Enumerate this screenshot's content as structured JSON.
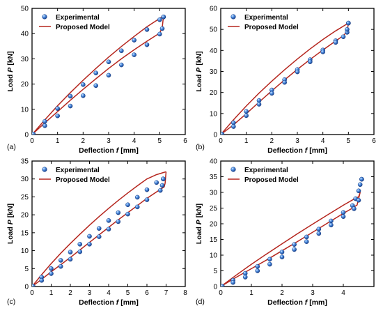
{
  "chart_data": [
    {
      "panel_label": "(a)",
      "type": "scatter",
      "xlabel_parts": [
        "Deflection ",
        "f",
        " [mm]"
      ],
      "ylabel_parts": [
        "Load ",
        "P",
        " [kN]"
      ],
      "xlim": [
        0,
        6
      ],
      "ylim": [
        0,
        50
      ],
      "xticks": [
        0,
        1,
        2,
        3,
        4,
        5,
        6
      ],
      "yticks": [
        0,
        10,
        20,
        30,
        40,
        50
      ],
      "legend": [
        "Experimental",
        "Proposed Model"
      ],
      "legend_position": "top-left",
      "series": [
        {
          "name": "Experimental",
          "kind": "markers",
          "loading": [
            [
              0,
              0
            ],
            [
              0.5,
              5.2
            ],
            [
              1.0,
              10.3
            ],
            [
              1.5,
              15.2
            ],
            [
              2.0,
              19.8
            ],
            [
              2.5,
              24.4
            ],
            [
              3.0,
              28.8
            ],
            [
              3.5,
              33.2
            ],
            [
              4.0,
              37.4
            ],
            [
              4.5,
              41.6
            ],
            [
              5.0,
              45.5
            ],
            [
              5.15,
              46.6
            ]
          ],
          "unloading": [
            [
              5.15,
              46.6
            ],
            [
              5.1,
              42.0
            ],
            [
              5.0,
              39.8
            ],
            [
              4.5,
              35.6
            ],
            [
              4.0,
              31.6
            ],
            [
              3.5,
              27.6
            ],
            [
              3.0,
              23.5
            ],
            [
              2.5,
              19.4
            ],
            [
              2.0,
              15.4
            ],
            [
              1.5,
              11.3
            ],
            [
              1.0,
              7.4
            ],
            [
              0.5,
              3.5
            ],
            [
              0.05,
              0.2
            ]
          ]
        },
        {
          "name": "Proposed Model",
          "kind": "line",
          "loading": [
            [
              0,
              0
            ],
            [
              0.5,
              5.8
            ],
            [
              1.0,
              11.4
            ],
            [
              1.5,
              16.6
            ],
            [
              2.0,
              21.5
            ],
            [
              2.5,
              26.2
            ],
            [
              3.0,
              30.7
            ],
            [
              3.5,
              34.9
            ],
            [
              4.0,
              38.9
            ],
            [
              4.5,
              42.7
            ],
            [
              5.0,
              46.0
            ],
            [
              5.15,
              47.0
            ]
          ],
          "unloading": [
            [
              5.15,
              47.0
            ],
            [
              5.1,
              42.5
            ],
            [
              5.0,
              40.2
            ],
            [
              4.5,
              37.0
            ],
            [
              4.0,
              33.6
            ],
            [
              3.5,
              30.0
            ],
            [
              3.0,
              26.2
            ],
            [
              2.5,
              22.1
            ],
            [
              2.0,
              17.9
            ],
            [
              1.5,
              13.6
            ],
            [
              1.0,
              9.1
            ],
            [
              0.5,
              4.6
            ],
            [
              0,
              0
            ]
          ]
        }
      ]
    },
    {
      "panel_label": "(b)",
      "type": "scatter",
      "xlabel_parts": [
        "Deflection ",
        "f",
        " [mm]"
      ],
      "ylabel_parts": [
        "Load ",
        "P",
        " [kN]"
      ],
      "xlim": [
        0,
        6
      ],
      "ylim": [
        0,
        60
      ],
      "xticks": [
        0,
        1,
        2,
        3,
        4,
        5,
        6
      ],
      "yticks": [
        0,
        10,
        20,
        30,
        40,
        50,
        60
      ],
      "legend": [
        "Experimental",
        "Proposed Model"
      ],
      "legend_position": "top-left",
      "series": [
        {
          "name": "Experimental",
          "kind": "markers",
          "loading": [
            [
              0,
              0
            ],
            [
              0.5,
              5.6
            ],
            [
              1.0,
              11.0
            ],
            [
              1.5,
              16.2
            ],
            [
              2.0,
              21.2
            ],
            [
              2.5,
              26.1
            ],
            [
              3.0,
              30.9
            ],
            [
              3.5,
              35.6
            ],
            [
              4.0,
              40.2
            ],
            [
              4.5,
              44.6
            ],
            [
              4.95,
              48.6
            ],
            [
              5.0,
              53.0
            ]
          ],
          "unloading": [
            [
              5.0,
              53.0
            ],
            [
              4.95,
              50.0
            ],
            [
              4.8,
              46.5
            ],
            [
              4.5,
              43.8
            ],
            [
              4.0,
              39.3
            ],
            [
              3.5,
              34.6
            ],
            [
              3.0,
              29.8
            ],
            [
              2.5,
              24.8
            ],
            [
              2.0,
              19.6
            ],
            [
              1.5,
              14.4
            ],
            [
              1.0,
              9.0
            ],
            [
              0.5,
              3.8
            ],
            [
              0.05,
              0.2
            ]
          ]
        },
        {
          "name": "Proposed Model",
          "kind": "line",
          "loading": [
            [
              0,
              0
            ],
            [
              0.5,
              7.0
            ],
            [
              1.0,
              13.6
            ],
            [
              1.5,
              19.7
            ],
            [
              2.0,
              25.4
            ],
            [
              2.5,
              30.8
            ],
            [
              3.0,
              35.9
            ],
            [
              3.5,
              40.7
            ],
            [
              4.0,
              45.2
            ],
            [
              4.5,
              49.3
            ],
            [
              5.0,
              53.0
            ]
          ],
          "unloading": [
            [
              5.0,
              53.0
            ],
            [
              4.95,
              49.0
            ],
            [
              4.8,
              47.0
            ],
            [
              4.5,
              44.5
            ],
            [
              4.0,
              40.2
            ],
            [
              3.5,
              35.7
            ],
            [
              3.0,
              31.0
            ],
            [
              2.5,
              26.0
            ],
            [
              2.0,
              20.8
            ],
            [
              1.5,
              15.4
            ],
            [
              1.0,
              9.9
            ],
            [
              0.5,
              4.6
            ],
            [
              0,
              0
            ]
          ]
        }
      ]
    },
    {
      "panel_label": "(c)",
      "type": "scatter",
      "xlabel_parts": [
        "Deflection ",
        "f",
        " [mm]"
      ],
      "ylabel_parts": [
        "Load ",
        "P",
        " [kN]"
      ],
      "xlim": [
        0,
        8
      ],
      "ylim": [
        0,
        35
      ],
      "xticks": [
        0,
        1,
        2,
        3,
        4,
        5,
        6,
        7,
        8
      ],
      "yticks": [
        0,
        5,
        10,
        15,
        20,
        25,
        30,
        35
      ],
      "legend": [
        "Experimental",
        "Proposed Model"
      ],
      "legend_position": "top-left",
      "series": [
        {
          "name": "Experimental",
          "kind": "markers",
          "loading": [
            [
              0,
              0
            ],
            [
              0.5,
              2.6
            ],
            [
              1.0,
              5.0
            ],
            [
              1.5,
              7.3
            ],
            [
              2.0,
              9.6
            ],
            [
              2.5,
              11.8
            ],
            [
              3.0,
              14.0
            ],
            [
              3.5,
              16.2
            ],
            [
              4.0,
              18.4
            ],
            [
              4.5,
              20.6
            ],
            [
              5.0,
              22.8
            ],
            [
              5.5,
              24.9
            ],
            [
              6.0,
              27.0
            ],
            [
              6.5,
              29.0
            ],
            [
              6.85,
              30.0
            ]
          ],
          "unloading": [
            [
              6.85,
              30.0
            ],
            [
              6.8,
              28.2
            ],
            [
              6.7,
              26.8
            ],
            [
              6.0,
              24.2
            ],
            [
              5.5,
              22.2
            ],
            [
              5.0,
              20.2
            ],
            [
              4.5,
              18.1
            ],
            [
              4.0,
              16.0
            ],
            [
              3.5,
              13.9
            ],
            [
              3.0,
              11.8
            ],
            [
              2.5,
              9.7
            ],
            [
              2.0,
              7.6
            ],
            [
              1.5,
              5.6
            ],
            [
              1.0,
              3.6
            ],
            [
              0.5,
              1.7
            ],
            [
              0.05,
              0.1
            ]
          ]
        },
        {
          "name": "Proposed Model",
          "kind": "line",
          "loading": [
            [
              0,
              0
            ],
            [
              0.5,
              3.3
            ],
            [
              1.0,
              6.4
            ],
            [
              1.5,
              9.3
            ],
            [
              2.0,
              12.0
            ],
            [
              2.5,
              14.6
            ],
            [
              3.0,
              17.1
            ],
            [
              3.5,
              19.5
            ],
            [
              4.0,
              21.8
            ],
            [
              4.5,
              24.0
            ],
            [
              5.0,
              26.1
            ],
            [
              5.5,
              28.1
            ],
            [
              6.0,
              30.0
            ],
            [
              6.5,
              31.2
            ],
            [
              7.0,
              32.0
            ]
          ],
          "unloading": [
            [
              7.0,
              32.0
            ],
            [
              6.95,
              28.8
            ],
            [
              6.9,
              27.8
            ],
            [
              6.0,
              24.6
            ],
            [
              5.5,
              22.6
            ],
            [
              5.0,
              20.6
            ],
            [
              4.5,
              18.6
            ],
            [
              4.0,
              16.5
            ],
            [
              3.5,
              14.4
            ],
            [
              3.0,
              12.3
            ],
            [
              2.5,
              10.2
            ],
            [
              2.0,
              8.1
            ],
            [
              1.5,
              6.1
            ],
            [
              1.0,
              4.1
            ],
            [
              0.5,
              2.0
            ],
            [
              0,
              0
            ]
          ]
        }
      ]
    },
    {
      "panel_label": "(d)",
      "type": "scatter",
      "xlabel_parts": [
        "Deflection ",
        "f",
        " [mm]"
      ],
      "ylabel_parts": [
        "Load ",
        "P",
        " [kN]"
      ],
      "xlim": [
        0,
        5
      ],
      "ylim": [
        0,
        40
      ],
      "xticks": [
        0,
        1,
        2,
        3,
        4
      ],
      "yticks": [
        0,
        5,
        10,
        15,
        20,
        25,
        30,
        35,
        40
      ],
      "legend": [
        "Experimental",
        "Proposed Model"
      ],
      "legend_position": "top-left",
      "series": [
        {
          "name": "Experimental",
          "kind": "markers",
          "loading": [
            [
              0,
              0
            ],
            [
              0.4,
              2.0
            ],
            [
              0.8,
              4.2
            ],
            [
              1.2,
              6.4
            ],
            [
              1.6,
              8.7
            ],
            [
              2.0,
              11.0
            ],
            [
              2.4,
              13.4
            ],
            [
              2.8,
              15.8
            ],
            [
              3.2,
              18.3
            ],
            [
              3.6,
              20.9
            ],
            [
              4.0,
              23.6
            ],
            [
              4.3,
              25.8
            ],
            [
              4.4,
              28.0
            ],
            [
              4.5,
              30.5
            ],
            [
              4.55,
              32.5
            ],
            [
              4.6,
              34.2
            ]
          ],
          "unloading": [
            [
              4.6,
              34.2
            ],
            [
              4.5,
              27.5
            ],
            [
              4.35,
              24.8
            ],
            [
              4.0,
              22.3
            ],
            [
              3.6,
              19.6
            ],
            [
              3.2,
              16.9
            ],
            [
              2.8,
              14.3
            ],
            [
              2.4,
              11.8
            ],
            [
              2.0,
              9.4
            ],
            [
              1.6,
              7.1
            ],
            [
              1.2,
              5.0
            ],
            [
              0.8,
              3.0
            ],
            [
              0.4,
              1.3
            ],
            [
              0.05,
              0.1
            ]
          ]
        },
        {
          "name": "Proposed Model",
          "kind": "line",
          "loading": [
            [
              0,
              0
            ],
            [
              0.5,
              3.6
            ],
            [
              1.0,
              7.1
            ],
            [
              1.5,
              10.4
            ],
            [
              2.0,
              13.6
            ],
            [
              2.5,
              16.8
            ],
            [
              3.0,
              19.9
            ],
            [
              3.5,
              22.9
            ],
            [
              4.0,
              25.9
            ],
            [
              4.3,
              27.6
            ],
            [
              4.5,
              28.6
            ],
            [
              4.55,
              30.0
            ]
          ],
          "unloading": [
            [
              4.55,
              30.0
            ],
            [
              4.45,
              26.0
            ],
            [
              4.3,
              25.0
            ],
            [
              4.0,
              23.3
            ],
            [
              3.5,
              20.3
            ],
            [
              3.0,
              17.3
            ],
            [
              2.5,
              14.3
            ],
            [
              2.0,
              11.4
            ],
            [
              1.5,
              8.5
            ],
            [
              1.0,
              5.7
            ],
            [
              0.5,
              2.9
            ],
            [
              0,
              0
            ]
          ]
        }
      ]
    }
  ]
}
